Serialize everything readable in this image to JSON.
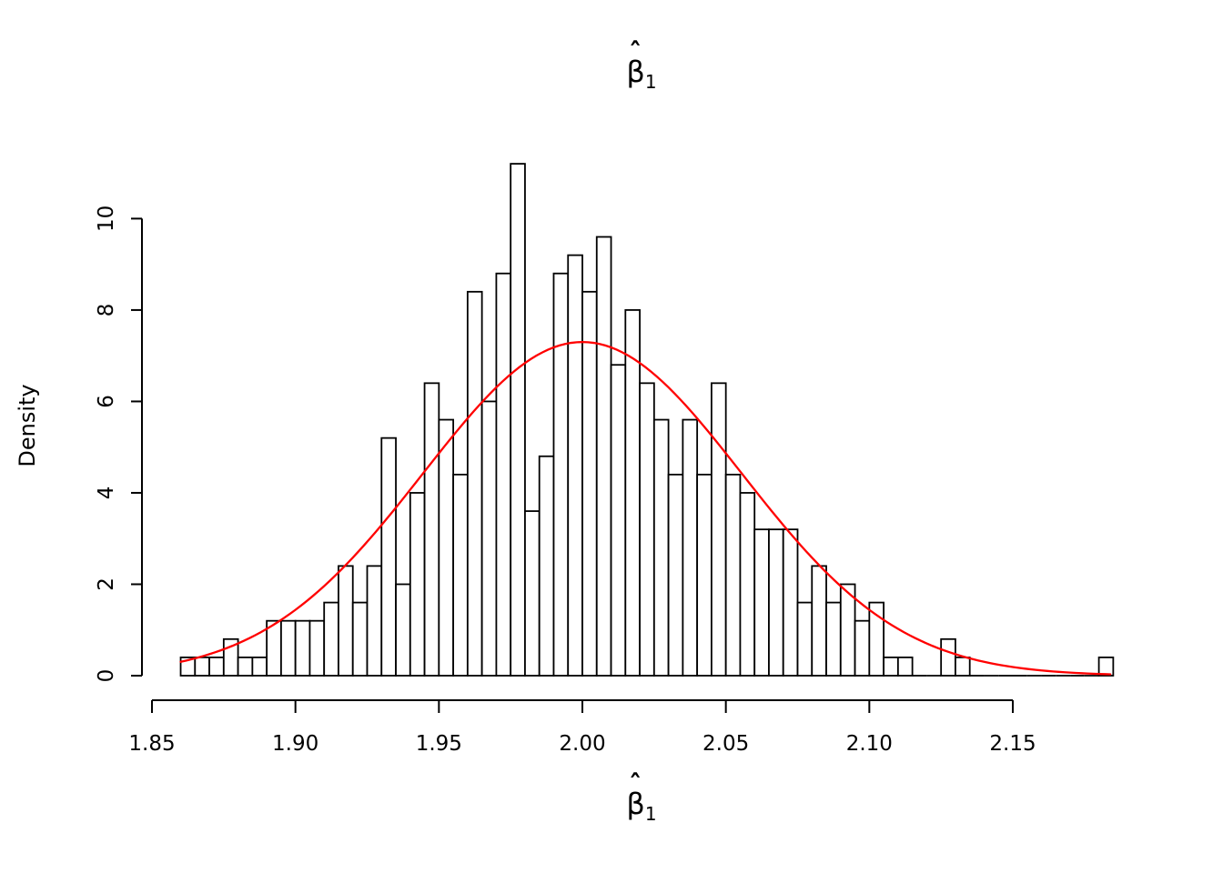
{
  "figure": {
    "background": "#ffffff",
    "text_color": "#000000"
  },
  "title": {
    "hat": "ˆ",
    "beta": "β",
    "sub": "1"
  },
  "xlabel": {
    "hat": "ˆ",
    "beta": "β",
    "sub": "1"
  },
  "ylabel": "Density",
  "chart_data": {
    "type": "bar",
    "subtype": "histogram-with-density-curve",
    "title": "β̂₁",
    "xlabel": "β̂₁",
    "ylabel": "Density",
    "x_axis": {
      "min": 1.85,
      "max": 2.15,
      "tick_values": [
        1.85,
        1.9,
        1.95,
        2.0,
        2.05,
        2.1,
        2.15
      ],
      "tick_labels": [
        "1.85",
        "1.90",
        "1.95",
        "2.00",
        "2.05",
        "2.10",
        "2.15"
      ]
    },
    "y_axis": {
      "min": 0,
      "max": 10,
      "tick_values": [
        0,
        2,
        4,
        6,
        8,
        10
      ],
      "tick_labels": [
        "0",
        "2",
        "4",
        "6",
        "8",
        "10"
      ]
    },
    "grid": false,
    "legend": false,
    "bins": {
      "start": 1.86,
      "width": 0.005,
      "densities": [
        0.4,
        0.4,
        0.4,
        0.8,
        0.4,
        0.4,
        1.2,
        1.2,
        1.2,
        1.2,
        1.6,
        2.4,
        1.6,
        2.4,
        5.2,
        2.0,
        4.0,
        6.4,
        5.6,
        4.4,
        8.4,
        6.0,
        8.8,
        11.2,
        3.6,
        4.8,
        8.8,
        9.2,
        8.4,
        9.6,
        6.8,
        8.0,
        6.4,
        5.6,
        4.4,
        5.6,
        4.4,
        6.4,
        4.4,
        4.0,
        3.2,
        3.2,
        3.2,
        1.6,
        2.4,
        1.6,
        2.0,
        1.2,
        1.6,
        0.4,
        0.4,
        0,
        0,
        0.8,
        0.4,
        0,
        0,
        0,
        0,
        0,
        0,
        0,
        0,
        0,
        0.4
      ]
    },
    "bar_fill": "#ffffff",
    "bar_stroke": "#000000",
    "normal_curve": {
      "mean": 2.0,
      "sd": 0.0555,
      "peak_density": 7.3,
      "color": "#ff0000",
      "x_from": 1.86,
      "x_to": 2.185
    }
  }
}
